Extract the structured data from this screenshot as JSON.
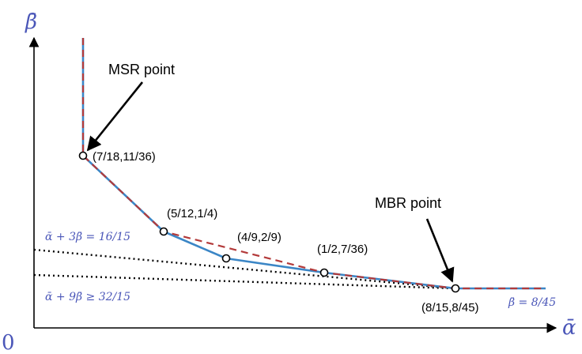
{
  "axes": {
    "y_label": "β̄",
    "x_label": "ᾱ",
    "origin_label": "0"
  },
  "callouts": {
    "msr": "MSR point",
    "mbr": "MBR point"
  },
  "point_labels": {
    "p1": "(7/18,11/36)",
    "p2": "(5/12,1/4)",
    "p3": "(4/9,2/9)",
    "p4": "(1/2,7/36)",
    "p5": "(8/15,8/45)"
  },
  "equations": {
    "eq1": "ᾱ + 3β̄ = 16/15",
    "eq2": "ᾱ + 9β̄ ≥ 32/15",
    "eq3": "β̄ = 8/45"
  },
  "colors": {
    "curve": "#3b86c6",
    "dashed": "#b33a3a",
    "label_blue": "#4a56b8"
  }
}
